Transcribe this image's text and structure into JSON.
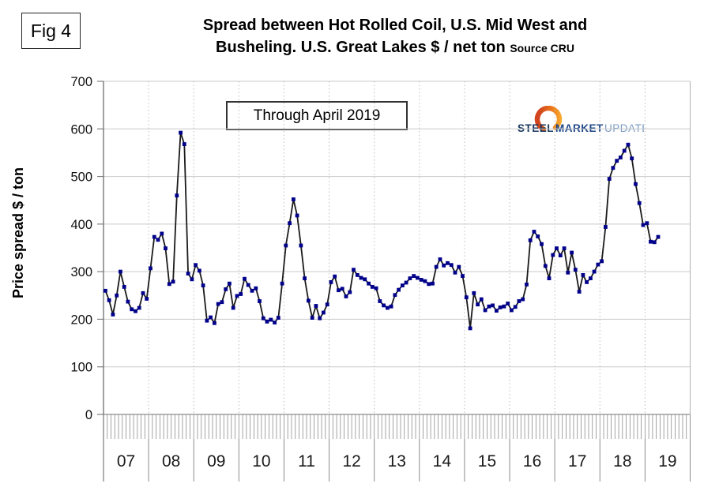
{
  "figure_label": "Fig 4",
  "title": {
    "line1": "Spread between Hot Rolled Coil, U.S. Mid West and",
    "line2": "Busheling. U.S. Great Lakes  $ / net ton",
    "source": "Source CRU"
  },
  "annotation": "Through April 2019",
  "y_axis_title": "Price spread $ / ton",
  "logo": {
    "word1": "STEEL",
    "word2": "MARKET",
    "word3": "UPDATE",
    "crescent_colors": [
      "#f9b234",
      "#d2451e"
    ],
    "word_colors": [
      "#17365d",
      "#1c4587",
      "#7a9cc2"
    ]
  },
  "chart_data": {
    "type": "line",
    "title": "Spread between Hot Rolled Coil, U.S. Mid West and Busheling. U.S. Great Lakes $ / net ton",
    "source": "CRU",
    "through": "April 2019",
    "x_years": [
      "07",
      "08",
      "09",
      "10",
      "11",
      "12",
      "13",
      "14",
      "15",
      "16",
      "17",
      "18",
      "19"
    ],
    "months_per_year": 12,
    "start_month": "2007-01",
    "end_month": "2019-04",
    "n_points": 148,
    "y_ticks": [
      0,
      100,
      200,
      300,
      400,
      500,
      600,
      700
    ],
    "ylim": [
      0,
      700
    ],
    "ylabel": "Price spread $ / ton",
    "grid": {
      "horizontal": true,
      "vertical_year_dotted": true,
      "monthly_minor_ticks": true
    },
    "legend": "none",
    "line_color": "#1a1a1a",
    "marker_color": "#00008b",
    "monthly_values": [
      260,
      240,
      210,
      250,
      300,
      268,
      237,
      221,
      217,
      224,
      255,
      243,
      307,
      373,
      367,
      380,
      349,
      274,
      279,
      460,
      592,
      568,
      296,
      284,
      314,
      302,
      271,
      197,
      204,
      192,
      232,
      236,
      263,
      275,
      224,
      249,
      253,
      285,
      272,
      260,
      265,
      238,
      202,
      195,
      199,
      193,
      203,
      275,
      355,
      402,
      452,
      418,
      355,
      286,
      239,
      203,
      228,
      202,
      214,
      231,
      278,
      290,
      261,
      264,
      248,
      257,
      304,
      293,
      287,
      284,
      275,
      268,
      265,
      238,
      229,
      224,
      227,
      251,
      262,
      271,
      277,
      286,
      291,
      287,
      283,
      280,
      274,
      275,
      310,
      326,
      313,
      318,
      314,
      298,
      310,
      291,
      246,
      181,
      255,
      231,
      242,
      219,
      227,
      229,
      218,
      225,
      227,
      233,
      219,
      226,
      238,
      242,
      273,
      366,
      384,
      374,
      358,
      312,
      286,
      335,
      349,
      334,
      349,
      298,
      340,
      304,
      258,
      293,
      278,
      286,
      300,
      315,
      322,
      394,
      495,
      518,
      533,
      540,
      554,
      567,
      538,
      484,
      444,
      398,
      402,
      363,
      362,
      373
    ]
  }
}
